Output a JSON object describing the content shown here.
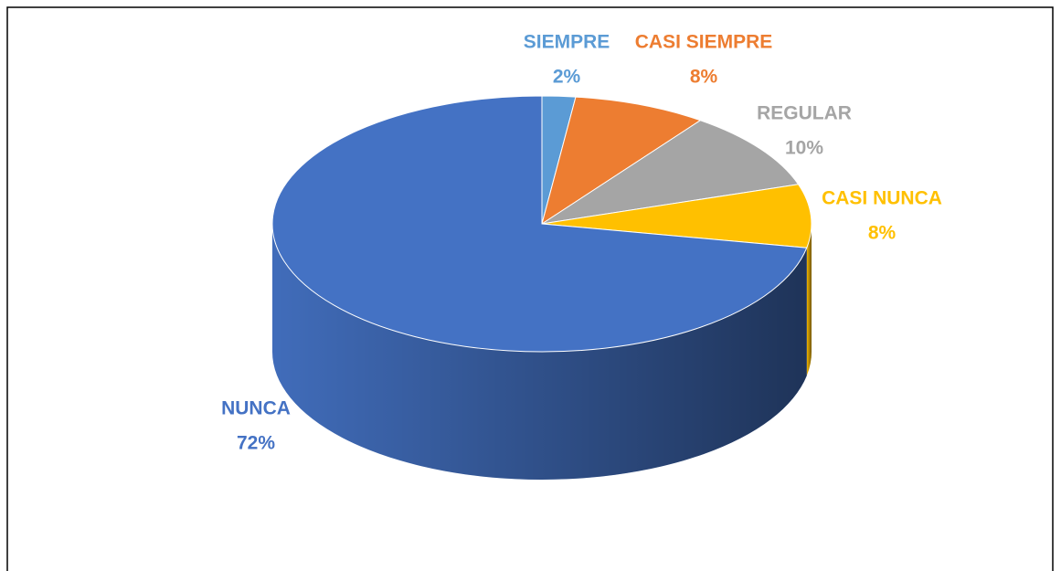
{
  "chart_data": {
    "type": "pie",
    "categories": [
      "SIEMPRE",
      "CASI SIEMPRE",
      "REGULAR",
      "CASI NUNCA",
      "NUNCA"
    ],
    "values": [
      2,
      8,
      10,
      8,
      72
    ],
    "value_labels": [
      "2%",
      "8%",
      "10%",
      "8%",
      "72%"
    ],
    "colors": [
      "#5b9bd5",
      "#ed7d31",
      "#a5a5a5",
      "#ffc000",
      "#4472c4"
    ]
  }
}
